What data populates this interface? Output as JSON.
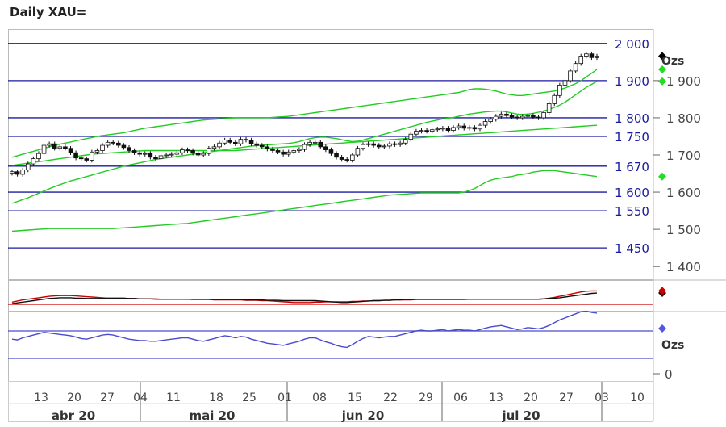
{
  "title": "Daily XAU=",
  "chart_data": {
    "type": "candlestick",
    "title": "Daily XAU=",
    "unit_label": "Ozs",
    "lower_unit_label": "Ozs",
    "lower_zero_label": "0",
    "y_axis_ticks": [
      "1 400",
      "1 500",
      "1 600",
      "1 700",
      "1 800",
      "1 900"
    ],
    "ylim": [
      1370,
      2030
    ],
    "horizontal_levels": [
      {
        "value": 2000,
        "label": "2 000"
      },
      {
        "value": 1900,
        "label": "1 900"
      },
      {
        "value": 1800,
        "label": "1 800"
      },
      {
        "value": 1750,
        "label": "1 750"
      },
      {
        "value": 1670,
        "label": "1 670"
      },
      {
        "value": 1600,
        "label": "1 600"
      },
      {
        "value": 1550,
        "label": "1 550"
      },
      {
        "value": 1450,
        "label": "1 450"
      }
    ],
    "day_ticks": [
      "13",
      "20",
      "27",
      "04",
      "11",
      "18",
      "25",
      "01",
      "08",
      "15",
      "22",
      "29",
      "06",
      "13",
      "20",
      "27",
      "03",
      "10"
    ],
    "month_labels": [
      "abr 20",
      "mai 20",
      "jun 20",
      "jul 20"
    ],
    "closes": [
      1655,
      1648,
      1660,
      1676,
      1690,
      1704,
      1726,
      1730,
      1718,
      1722,
      1718,
      1706,
      1692,
      1690,
      1686,
      1708,
      1712,
      1726,
      1734,
      1732,
      1726,
      1720,
      1712,
      1706,
      1702,
      1704,
      1694,
      1690,
      1698,
      1700,
      1702,
      1706,
      1714,
      1712,
      1705,
      1700,
      1704,
      1718,
      1722,
      1732,
      1740,
      1734,
      1730,
      1742,
      1740,
      1730,
      1726,
      1722,
      1716,
      1712,
      1708,
      1702,
      1708,
      1712,
      1715,
      1728,
      1734,
      1734,
      1722,
      1714,
      1704,
      1694,
      1688,
      1686,
      1700,
      1718,
      1728,
      1730,
      1726,
      1722,
      1724,
      1730,
      1728,
      1732,
      1742,
      1756,
      1764,
      1766,
      1764,
      1768,
      1770,
      1772,
      1766,
      1774,
      1778,
      1772,
      1774,
      1770,
      1780,
      1790,
      1796,
      1804,
      1810,
      1806,
      1802,
      1800,
      1804,
      1806,
      1802,
      1800,
      1814,
      1838,
      1860,
      1888,
      1900,
      1926,
      1946,
      1966,
      1972,
      1962,
      1966
    ],
    "ema_fast": [
      1570,
      1575,
      1580,
      1585,
      1591,
      1597,
      1603,
      1609,
      1615,
      1620,
      1625,
      1630,
      1634,
      1638,
      1642,
      1646,
      1650,
      1654,
      1658,
      1662,
      1666,
      1670,
      1673,
      1676,
      1679,
      1682,
      1685,
      1688,
      1690,
      1692,
      1694,
      1696,
      1698,
      1700,
      1702,
      1704,
      1706,
      1708,
      1710,
      1712,
      1714,
      1716,
      1718,
      1720,
      1722,
      1724,
      1725,
      1726,
      1727,
      1728,
      1729,
      1730,
      1731,
      1733,
      1736,
      1740,
      1744,
      1747,
      1748,
      1748,
      1746,
      1744,
      1741,
      1738,
      1736,
      1737,
      1740,
      1744,
      1748,
      1752,
      1756,
      1760,
      1764,
      1768,
      1772,
      1776,
      1780,
      1784,
      1788,
      1791,
      1794,
      1797,
      1799,
      1801,
      1804,
      1807,
      1810,
      1812,
      1814,
      1816,
      1817,
      1818,
      1818,
      1816,
      1813,
      1810,
      1809,
      1810,
      1812,
      1815,
      1818,
      1823,
      1828,
      1834,
      1842,
      1852,
      1862,
      1872,
      1882,
      1890,
      1898
    ],
    "upper_band": [
      1694,
      1698,
      1702,
      1706,
      1710,
      1714,
      1718,
      1722,
      1726,
      1729,
      1732,
      1735,
      1738,
      1741,
      1744,
      1747,
      1750,
      1752,
      1754,
      1756,
      1758,
      1760,
      1763,
      1766,
      1769,
      1772,
      1774,
      1776,
      1778,
      1780,
      1782,
      1784,
      1786,
      1788,
      1790,
      1792,
      1794,
      1795,
      1796,
      1797,
      1798,
      1799,
      1800,
      1800,
      1800,
      1800,
      1800,
      1800,
      1800,
      1801,
      1802,
      1803,
      1804,
      1806,
      1808,
      1810,
      1812,
      1814,
      1816,
      1818,
      1820,
      1822,
      1824,
      1826,
      1828,
      1830,
      1832,
      1834,
      1836,
      1838,
      1840,
      1842,
      1844,
      1846,
      1848,
      1850,
      1852,
      1854,
      1856,
      1858,
      1860,
      1862,
      1864,
      1866,
      1868,
      1872,
      1876,
      1878,
      1878,
      1877,
      1875,
      1872,
      1868,
      1864,
      1862,
      1860,
      1860,
      1862,
      1864,
      1866,
      1868,
      1870,
      1872,
      1876,
      1880,
      1886,
      1892,
      1900,
      1910,
      1920,
      1930
    ],
    "middle_band": [
      1672,
      1674,
      1676,
      1678,
      1680,
      1682,
      1684,
      1686,
      1688,
      1690,
      1692,
      1694,
      1696,
      1698,
      1700,
      1702,
      1703,
      1704,
      1705,
      1706,
      1707,
      1708,
      1709,
      1710,
      1711,
      1712,
      1712,
      1712,
      1712,
      1712,
      1712,
      1712,
      1712,
      1712,
      1712,
      1712,
      1712,
      1712,
      1712,
      1712,
      1712,
      1712,
      1712,
      1713,
      1714,
      1715,
      1716,
      1717,
      1718,
      1719,
      1720,
      1721,
      1722,
      1723,
      1724,
      1725,
      1726,
      1727,
      1728,
      1729,
      1730,
      1731,
      1732,
      1733,
      1734,
      1735,
      1736,
      1737,
      1738,
      1739,
      1740,
      1741,
      1742,
      1743,
      1744,
      1745,
      1746,
      1747,
      1748,
      1749,
      1750,
      1751,
      1752,
      1753,
      1754,
      1755,
      1756,
      1757,
      1758,
      1759,
      1760,
      1761,
      1762,
      1763,
      1764,
      1765,
      1766,
      1767,
      1768,
      1769,
      1770,
      1771,
      1772,
      1773,
      1774,
      1775,
      1776,
      1777,
      1778,
      1779,
      1780
    ],
    "lower_band": [
      1495,
      1496,
      1497,
      1498,
      1499,
      1500,
      1501,
      1502,
      1502,
      1502,
      1502,
      1502,
      1502,
      1502,
      1502,
      1502,
      1502,
      1502,
      1502,
      1502,
      1503,
      1504,
      1505,
      1506,
      1507,
      1508,
      1509,
      1510,
      1511,
      1512,
      1513,
      1514,
      1515,
      1516,
      1518,
      1520,
      1522,
      1524,
      1526,
      1528,
      1530,
      1532,
      1534,
      1536,
      1538,
      1540,
      1542,
      1544,
      1546,
      1548,
      1550,
      1552,
      1554,
      1556,
      1558,
      1560,
      1562,
      1564,
      1566,
      1568,
      1570,
      1572,
      1574,
      1576,
      1578,
      1580,
      1582,
      1584,
      1586,
      1588,
      1590,
      1592,
      1593,
      1594,
      1595,
      1596,
      1597,
      1598,
      1598,
      1598,
      1598,
      1598,
      1598,
      1598,
      1598,
      1600,
      1604,
      1610,
      1618,
      1626,
      1632,
      1636,
      1638,
      1640,
      1642,
      1646,
      1648,
      1650,
      1654,
      1656,
      1658,
      1658,
      1658,
      1656,
      1654,
      1652,
      1650,
      1648,
      1646,
      1644,
      1642
    ],
    "macd": [
      2,
      4,
      6,
      8,
      10,
      12,
      14,
      16,
      17,
      18,
      18,
      18,
      17,
      17,
      16,
      16,
      16,
      16,
      17,
      17,
      17,
      17,
      16,
      16,
      15,
      15,
      15,
      14,
      14,
      14,
      14,
      14,
      14,
      14,
      14,
      14,
      14,
      14,
      13,
      13,
      13,
      13,
      13,
      13,
      12,
      12,
      12,
      12,
      11,
      11,
      11,
      10,
      10,
      10,
      10,
      10,
      10,
      10,
      9,
      8,
      7,
      6,
      5,
      5,
      6,
      7,
      8,
      9,
      10,
      10,
      11,
      11,
      12,
      12,
      13,
      13,
      14,
      14,
      14,
      14,
      14,
      14,
      14,
      14,
      14,
      14,
      14,
      14,
      14,
      14,
      14,
      14,
      14,
      14,
      14,
      14,
      14,
      14,
      14,
      14,
      15,
      16,
      17,
      18,
      20,
      22,
      24,
      26,
      28,
      30,
      31
    ],
    "macd_signal": [
      6,
      9,
      12,
      14,
      16,
      18,
      20,
      22,
      23,
      24,
      24,
      24,
      23,
      22,
      21,
      20,
      19,
      18,
      17,
      17,
      17,
      17,
      16,
      16,
      15,
      15,
      15,
      15,
      14,
      14,
      14,
      14,
      14,
      14,
      13,
      13,
      13,
      13,
      12,
      12,
      12,
      12,
      12,
      12,
      11,
      11,
      11,
      10,
      10,
      9,
      8,
      7,
      6,
      5,
      5,
      5,
      5,
      6,
      6,
      7,
      7,
      7,
      7,
      7,
      8,
      8,
      9,
      9,
      10,
      10,
      11,
      11,
      12,
      12,
      12,
      12,
      13,
      13,
      13,
      13,
      13,
      13,
      13,
      13,
      13,
      13,
      14,
      14,
      14,
      14,
      14,
      14,
      14,
      14,
      14,
      14,
      14,
      14,
      14,
      14,
      15,
      17,
      19,
      22,
      25,
      28,
      31,
      34,
      36,
      37,
      37
    ],
    "rsi": [
      58,
      57,
      60,
      62,
      64,
      66,
      68,
      67,
      66,
      65,
      64,
      63,
      61,
      59,
      58,
      60,
      62,
      64,
      65,
      64,
      62,
      60,
      58,
      57,
      56,
      56,
      55,
      55,
      56,
      57,
      58,
      59,
      60,
      60,
      58,
      56,
      55,
      57,
      59,
      61,
      63,
      62,
      60,
      62,
      61,
      58,
      56,
      54,
      52,
      51,
      50,
      49,
      51,
      53,
      55,
      58,
      60,
      60,
      57,
      54,
      52,
      49,
      47,
      46,
      50,
      55,
      59,
      62,
      61,
      60,
      61,
      62,
      62,
      64,
      66,
      68,
      70,
      71,
      70,
      70,
      71,
      72,
      70,
      71,
      72,
      71,
      71,
      70,
      72,
      74,
      76,
      77,
      78,
      76,
      74,
      72,
      73,
      75,
      74,
      73,
      75,
      78,
      82,
      86,
      89,
      92,
      95,
      98,
      99,
      97,
      96
    ]
  }
}
